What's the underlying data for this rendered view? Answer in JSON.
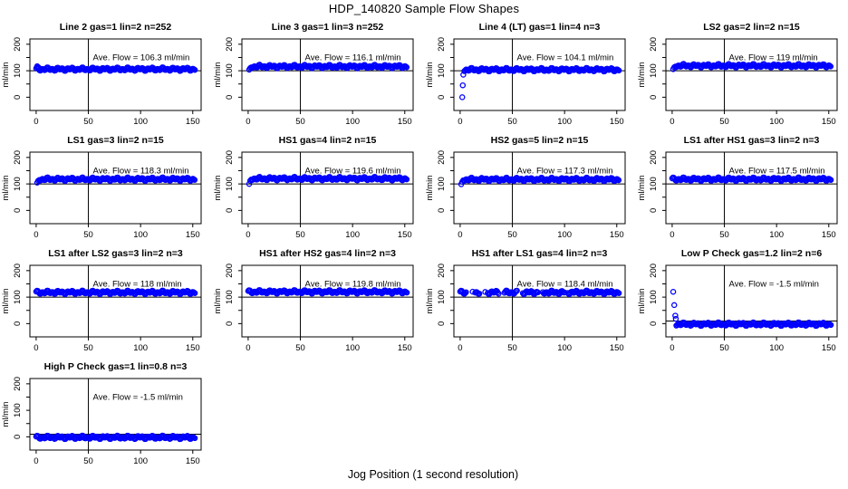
{
  "figure": {
    "title": "HDP_140820  Sample Flow Shapes",
    "xlabel": "Jog Position (1 second resolution)"
  },
  "chart_data": {
    "type": "scatter",
    "title": "HDP_140820  Sample Flow Shapes",
    "xlabel": "Jog Position (1 second resolution)",
    "point_color": "#0000ff",
    "line_color": "#000000",
    "grid": {
      "rows": 4,
      "cols": 4,
      "count": 13
    },
    "x_axis": {
      "ticks": [
        0,
        50,
        100,
        150
      ],
      "xlim": [
        -6,
        158
      ]
    },
    "y_axis": {
      "ticks": [
        0,
        50,
        100,
        150,
        200
      ],
      "labeled_ticks": [
        0,
        100,
        200
      ],
      "label": "ml/min",
      "ylim": [
        -50,
        220
      ]
    },
    "reference_vline_x": 50,
    "plots": [
      {
        "title": "Line 2 gas=1 lin=2 n=252",
        "ave_flow": 106.3,
        "ave_flow_label": "Ave. Flow =  106.3  ml/min",
        "steady_flow": 106,
        "band_x": [
          0,
          152
        ],
        "refline_y": 100,
        "start_points": [
          [
            1,
            117
          ],
          [
            1.8,
            114
          ],
          [
            2.6,
            111
          ]
        ],
        "sparse_x_ranges": []
      },
      {
        "title": "Line 3 gas=1 lin=3 n=252",
        "ave_flow": 116.1,
        "ave_flow_label": "Ave. Flow =  116.1  ml/min",
        "steady_flow": 116,
        "band_x": [
          3,
          152
        ],
        "refline_y": 100,
        "start_points": [
          [
            1,
            104
          ],
          [
            2,
            110
          ]
        ],
        "sparse_x_ranges": []
      },
      {
        "title": "Line 4 (LT) gas=1 lin=4 n=3",
        "ave_flow": 104.1,
        "ave_flow_label": "Ave. Flow =  104.1  ml/min",
        "steady_flow": 104,
        "band_x": [
          4,
          152
        ],
        "refline_y": 100,
        "start_points": [
          [
            2,
            0
          ],
          [
            2.5,
            45
          ],
          [
            3,
            85
          ]
        ],
        "sparse_x_ranges": []
      },
      {
        "title": "LS2 gas=2 lin=2 n=15",
        "ave_flow": 119,
        "ave_flow_label": "Ave. Flow =  119  ml/min",
        "steady_flow": 119,
        "band_x": [
          3,
          152
        ],
        "refline_y": 100,
        "start_points": [
          [
            1,
            106
          ],
          [
            2,
            113
          ]
        ],
        "sparse_x_ranges": []
      },
      {
        "title": "LS1 gas=3 lin=2 n=15",
        "ave_flow": 118.3,
        "ave_flow_label": "Ave. Flow =  118.3  ml/min",
        "steady_flow": 118,
        "band_x": [
          3,
          152
        ],
        "refline_y": 100,
        "start_points": [
          [
            1,
            105
          ],
          [
            2,
            112
          ]
        ],
        "sparse_x_ranges": []
      },
      {
        "title": "HS1 gas=4 lin=2 n=15",
        "ave_flow": 119.6,
        "ave_flow_label": "Ave. Flow =  119.6  ml/min",
        "steady_flow": 120,
        "band_x": [
          3,
          152
        ],
        "refline_y": 100,
        "start_points": [
          [
            1,
            100
          ],
          [
            2,
            112
          ]
        ],
        "sparse_x_ranges": []
      },
      {
        "title": "HS2 gas=5 lin=2 n=15",
        "ave_flow": 117.3,
        "ave_flow_label": "Ave. Flow =  117.3  ml/min",
        "steady_flow": 117,
        "band_x": [
          3,
          152
        ],
        "refline_y": 100,
        "start_points": [
          [
            1,
            99
          ],
          [
            2,
            108
          ]
        ],
        "sparse_x_ranges": []
      },
      {
        "title": "LS1 after HS1 gas=3 lin=2 n=3",
        "ave_flow": 117.5,
        "ave_flow_label": "Ave. Flow =  117.5  ml/min",
        "steady_flow": 118,
        "band_x": [
          0,
          152
        ],
        "refline_y": 100,
        "start_points": [],
        "sparse_x_ranges": []
      },
      {
        "title": "LS1 after LS2 gas=3 lin=2 n=3",
        "ave_flow": 118,
        "ave_flow_label": "Ave. Flow =  118  ml/min",
        "steady_flow": 118,
        "band_x": [
          0,
          152
        ],
        "refline_y": 100,
        "start_points": [],
        "sparse_x_ranges": []
      },
      {
        "title": "HS1 after HS2 gas=4 lin=2 n=3",
        "ave_flow": 119.8,
        "ave_flow_label": "Ave. Flow =  119.8  ml/min",
        "steady_flow": 120,
        "band_x": [
          0,
          152
        ],
        "refline_y": 100,
        "start_points": [],
        "sparse_x_ranges": []
      },
      {
        "title": "HS1 after LS1 gas=4 lin=2 n=3",
        "ave_flow": 118.4,
        "ave_flow_label": "Ave. Flow =  118.4  ml/min",
        "steady_flow": 118,
        "band_x": [
          0,
          152
        ],
        "refline_y": 100,
        "start_points": [],
        "sparse_x_ranges": [
          [
            6,
            14
          ],
          [
            19,
            26
          ],
          [
            37,
            42
          ],
          [
            55,
            60
          ],
          [
            75,
            79
          ],
          [
            100,
            103
          ]
        ]
      },
      {
        "title": "Low P Check gas=1.2 lin=2 n=6",
        "ave_flow": -1.5,
        "ave_flow_label": "Ave. Flow =  -1.5  ml/min",
        "steady_flow": -2,
        "band_x": [
          4,
          152
        ],
        "refline_y": 10,
        "start_points": [
          [
            1,
            120
          ],
          [
            2,
            70
          ],
          [
            3,
            30
          ],
          [
            3.5,
            18
          ]
        ],
        "sparse_x_ranges": []
      },
      {
        "title": "High P Check gas=1 lin=0.8 n=3",
        "ave_flow": -1.5,
        "ave_flow_label": "Ave. Flow =  -1.5  ml/min",
        "steady_flow": -2,
        "band_x": [
          0,
          152
        ],
        "refline_y": 10,
        "start_points": [],
        "sparse_x_ranges": []
      }
    ]
  }
}
